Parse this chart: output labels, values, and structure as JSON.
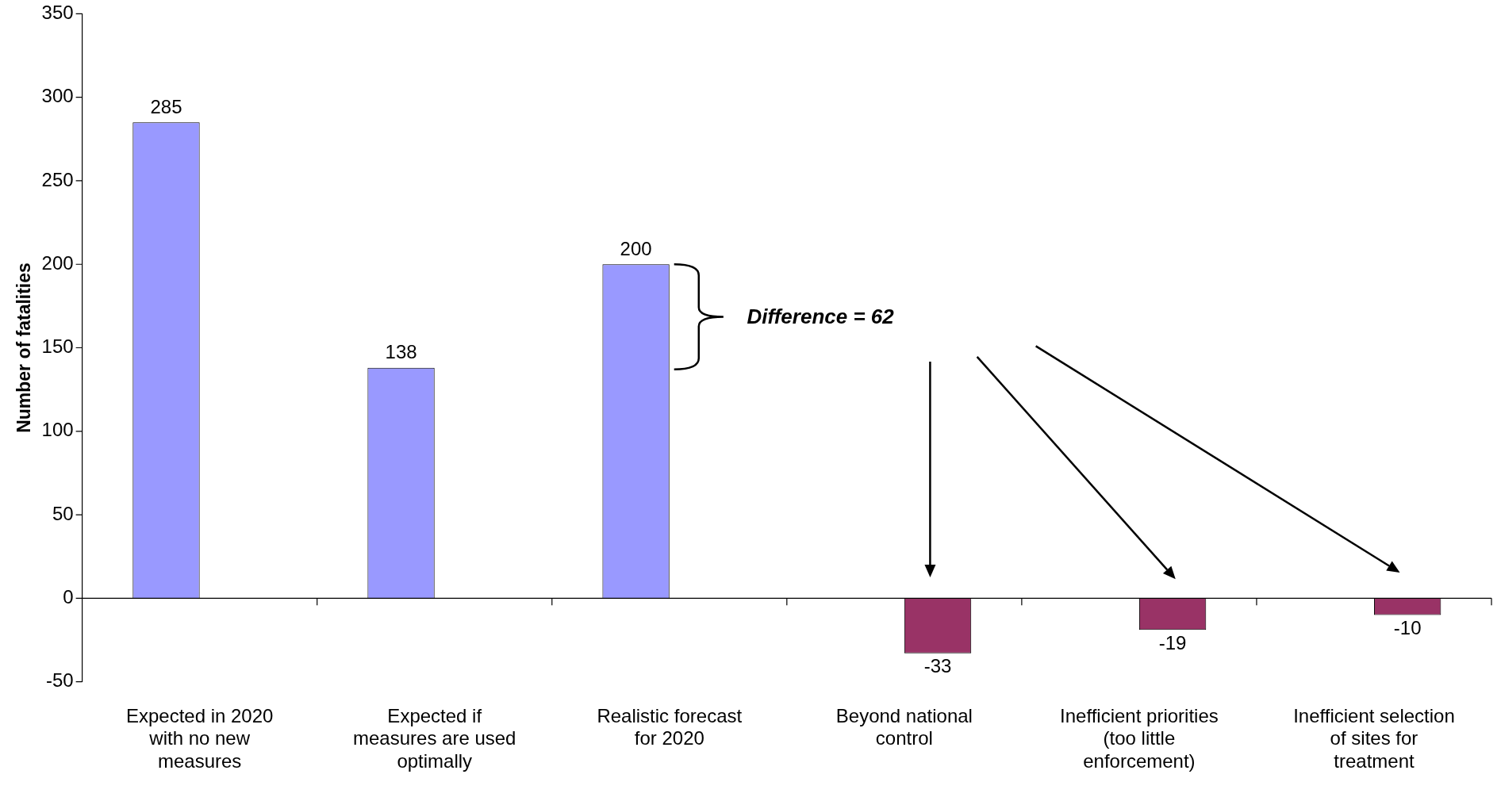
{
  "chart_data": {
    "type": "bar",
    "ylabel": "Number of fatalities",
    "categories": [
      "Expected in 2020\nwith no new\nmeasures",
      "Expected if\nmeasures are used\noptimally",
      "Realistic forecast\nfor 2020",
      "Beyond national\ncontrol",
      "Inefficient priorities\n(too little\nenforcement)",
      "Inefficient selection\nof sites for\ntreatment"
    ],
    "series": [
      {
        "color": "#9999ff",
        "values": [
          285,
          138,
          200,
          null,
          null,
          null
        ]
      },
      {
        "color": "#993366",
        "values": [
          null,
          null,
          null,
          -33,
          -19,
          -10
        ]
      }
    ],
    "ylim": [
      -50,
      350
    ],
    "yticks": [
      -50,
      0,
      50,
      100,
      150,
      200,
      250,
      300,
      350
    ],
    "grid": false,
    "ref_lines": [
      {
        "axis": "y",
        "value": 0,
        "color": "#000000"
      }
    ],
    "legend": false,
    "data_labels": true,
    "annotations": [
      "Difference = 62"
    ]
  }
}
